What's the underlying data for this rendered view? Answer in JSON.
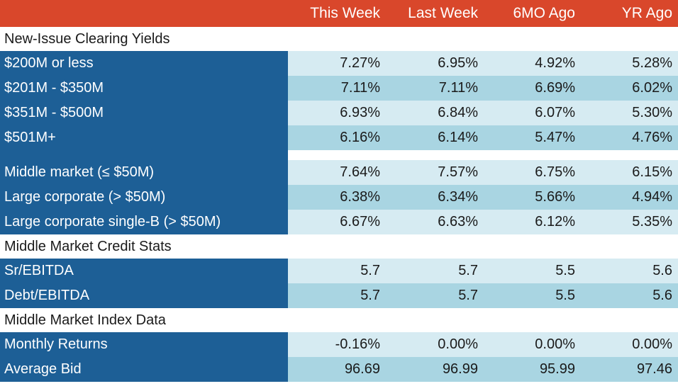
{
  "columns": [
    "This Week",
    "Last Week",
    "6MO Ago",
    "YR Ago"
  ],
  "sections": {
    "clearing": {
      "title": "New-Issue Clearing Yields",
      "rows": [
        {
          "label": "$200M or less",
          "values": [
            "7.27%",
            "6.95%",
            "4.92%",
            "5.28%"
          ]
        },
        {
          "label": "$201M - $350M",
          "values": [
            "7.11%",
            "7.11%",
            "6.69%",
            "6.02%"
          ]
        },
        {
          "label": "$351M - $500M",
          "values": [
            "6.93%",
            "6.84%",
            "6.07%",
            "5.30%"
          ]
        },
        {
          "label": "$501M+",
          "values": [
            "6.16%",
            "6.14%",
            "5.47%",
            "4.76%"
          ]
        }
      ],
      "rows2": [
        {
          "label": "Middle market (≤ $50M)",
          "values": [
            "7.64%",
            "7.57%",
            "6.75%",
            "6.15%"
          ]
        },
        {
          "label": "Large corporate (> $50M)",
          "values": [
            "6.38%",
            "6.34%",
            "5.66%",
            "4.94%"
          ]
        },
        {
          "label": "Large corporate single-B (> $50M)",
          "values": [
            "6.67%",
            "6.63%",
            "6.12%",
            "5.35%"
          ]
        }
      ]
    },
    "credit": {
      "title": "Middle Market Credit Stats",
      "rows": [
        {
          "label": "Sr/EBITDA",
          "values": [
            "5.7",
            "5.7",
            "5.5",
            "5.6"
          ]
        },
        {
          "label": "Debt/EBITDA",
          "values": [
            "5.7",
            "5.7",
            "5.5",
            "5.6"
          ]
        }
      ]
    },
    "index": {
      "title": "Middle Market Index Data",
      "rows": [
        {
          "label": "Monthly Returns",
          "values": [
            "-0.16%",
            "0.00%",
            "0.00%",
            "0.00%"
          ]
        },
        {
          "label": "Average Bid",
          "values": [
            "96.69",
            "96.99",
            "95.99",
            "97.46"
          ]
        }
      ]
    }
  },
  "colors": {
    "header": "#d9472b",
    "label_fill": "#1d5f96",
    "row_light": "#d6ebf2",
    "row_dark": "#a9d5e2"
  }
}
